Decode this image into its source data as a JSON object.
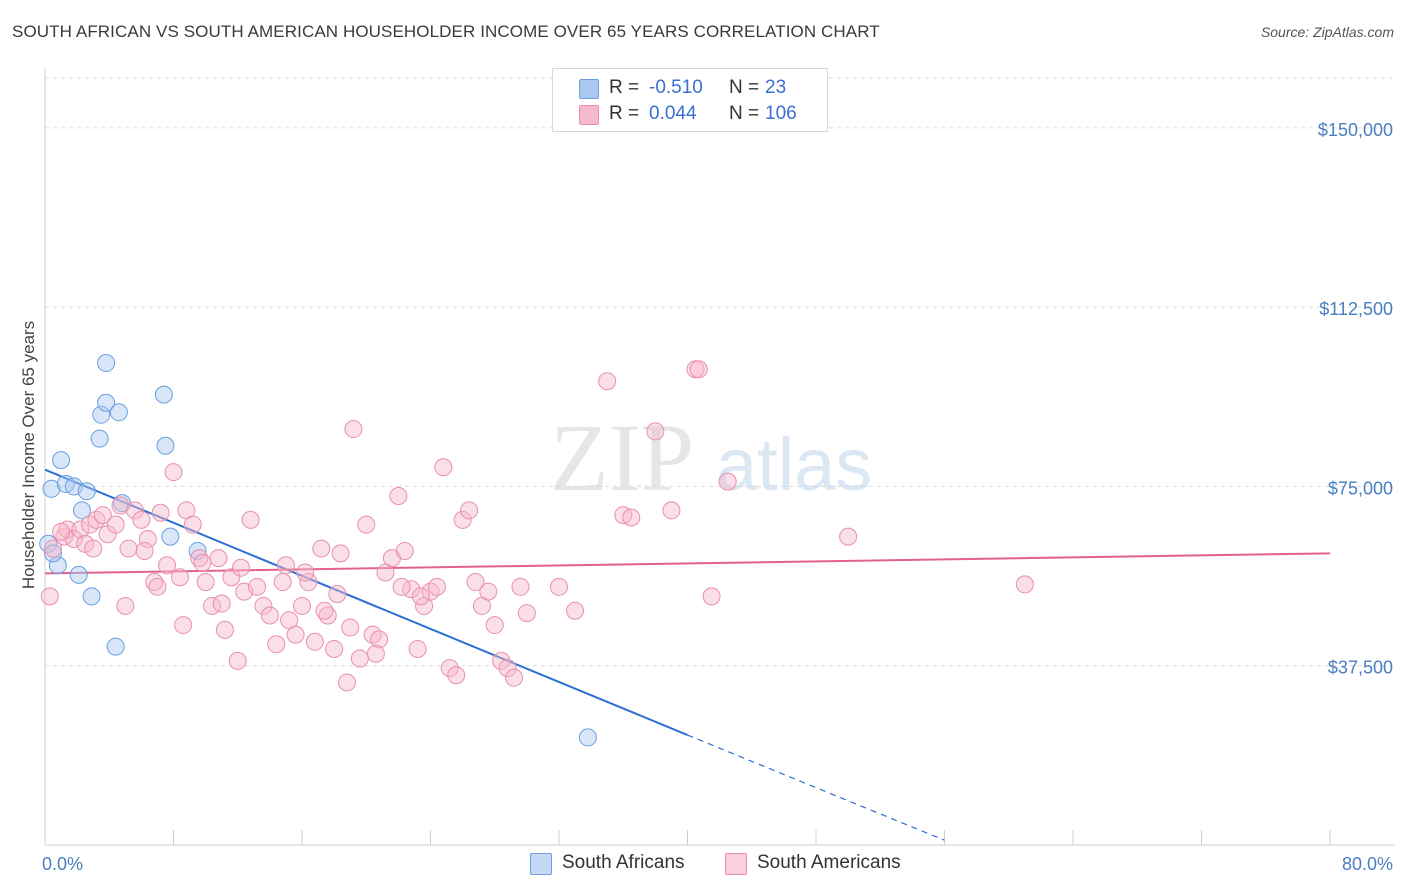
{
  "title": "SOUTH AFRICAN VS SOUTH AMERICAN HOUSEHOLDER INCOME OVER 65 YEARS CORRELATION CHART",
  "source": "Source: ZipAtlas.com",
  "watermark": {
    "zip": "ZIP",
    "atlas": "atlas"
  },
  "legend": {
    "rows": [
      {
        "r_label": "R =",
        "r_value": "-0.510",
        "n_label": "N =",
        "n_value": "23",
        "color": "#a8c8f0"
      },
      {
        "r_label": "R =",
        "r_value": "0.044",
        "n_label": "N =",
        "n_value": "106",
        "color": "#f6b8cb"
      }
    ]
  },
  "bottom_legend": [
    {
      "label": "South Africans",
      "color": "#a8c8f0"
    },
    {
      "label": "South Americans",
      "color": "#f6b8cb"
    }
  ],
  "chart_data": {
    "type": "scatter",
    "xlabel": "",
    "ylabel": "Householder Income Over 65 years",
    "xlim": [
      0,
      80
    ],
    "ylim": [
      0,
      160000
    ],
    "x_tick_labels": [
      "0.0%",
      "80.0%"
    ],
    "y_ticks": [
      37500,
      75000,
      112500,
      150000
    ],
    "y_tick_labels": [
      "$37,500",
      "$75,000",
      "$112,500",
      "$150,000"
    ],
    "grid": "horizontal dashed",
    "series": [
      {
        "name": "South Africans",
        "color": "#a8c8f0",
        "stroke": "#6a9fe0",
        "trend_color": "#2d6fd4",
        "points": [
          [
            0.2,
            63000
          ],
          [
            0.4,
            74500
          ],
          [
            1.0,
            80500
          ],
          [
            1.3,
            75500
          ],
          [
            1.8,
            75000
          ],
          [
            2.6,
            74000
          ],
          [
            2.3,
            70000
          ],
          [
            3.5,
            90000
          ],
          [
            3.4,
            85000
          ],
          [
            3.8,
            92500
          ],
          [
            4.6,
            90500
          ],
          [
            3.8,
            100800
          ],
          [
            7.4,
            94200
          ],
          [
            7.5,
            83500
          ],
          [
            4.8,
            71500
          ],
          [
            7.8,
            64500
          ],
          [
            9.5,
            61500
          ],
          [
            0.8,
            58500
          ],
          [
            2.1,
            56500
          ],
          [
            2.9,
            52000
          ],
          [
            4.4,
            41500
          ],
          [
            33.8,
            22500
          ],
          [
            0.5,
            61000
          ]
        ],
        "trend": {
          "x0": 0,
          "y0": 78500,
          "x1": 40,
          "y1": 23000,
          "dash_x1": 56,
          "dash_y1": 1000
        }
      },
      {
        "name": "South Americans",
        "color": "#f6b8cb",
        "stroke": "#e890aa",
        "trend_color": "#e2638a",
        "points": [
          [
            0.3,
            52000
          ],
          [
            0.5,
            62000
          ],
          [
            1.2,
            64500
          ],
          [
            1.4,
            66000
          ],
          [
            1.8,
            64000
          ],
          [
            2.2,
            66000
          ],
          [
            2.8,
            67000
          ],
          [
            3.2,
            68000
          ],
          [
            3.6,
            69000
          ],
          [
            3.9,
            65000
          ],
          [
            4.4,
            67000
          ],
          [
            4.7,
            71000
          ],
          [
            5.2,
            62000
          ],
          [
            5.6,
            70000
          ],
          [
            6.0,
            68000
          ],
          [
            6.4,
            64000
          ],
          [
            6.8,
            55000
          ],
          [
            7.2,
            69500
          ],
          [
            7.6,
            58500
          ],
          [
            8.0,
            78000
          ],
          [
            8.4,
            56000
          ],
          [
            8.8,
            70000
          ],
          [
            9.2,
            67000
          ],
          [
            9.6,
            60000
          ],
          [
            10.0,
            55000
          ],
          [
            10.4,
            50000
          ],
          [
            10.8,
            60000
          ],
          [
            11.2,
            45000
          ],
          [
            11.6,
            56000
          ],
          [
            12.0,
            38500
          ],
          [
            12.4,
            53000
          ],
          [
            12.8,
            68000
          ],
          [
            13.2,
            54000
          ],
          [
            13.6,
            50000
          ],
          [
            14.0,
            48000
          ],
          [
            14.4,
            42000
          ],
          [
            14.8,
            55000
          ],
          [
            15.2,
            47000
          ],
          [
            15.6,
            44000
          ],
          [
            16.0,
            50000
          ],
          [
            16.4,
            55000
          ],
          [
            16.8,
            42500
          ],
          [
            17.2,
            62000
          ],
          [
            17.6,
            48000
          ],
          [
            18.0,
            41000
          ],
          [
            18.4,
            61000
          ],
          [
            18.8,
            34000
          ],
          [
            19.2,
            87000
          ],
          [
            19.6,
            39000
          ],
          [
            20.0,
            67000
          ],
          [
            20.4,
            44000
          ],
          [
            20.8,
            43000
          ],
          [
            21.2,
            57000
          ],
          [
            21.6,
            60000
          ],
          [
            22.0,
            73000
          ],
          [
            22.4,
            61500
          ],
          [
            22.8,
            53500
          ],
          [
            23.2,
            41000
          ],
          [
            23.6,
            50000
          ],
          [
            24.0,
            53000
          ],
          [
            24.4,
            54000
          ],
          [
            24.8,
            79000
          ],
          [
            25.2,
            37000
          ],
          [
            25.6,
            35500
          ],
          [
            26.0,
            68000
          ],
          [
            26.4,
            70000
          ],
          [
            26.8,
            55000
          ],
          [
            27.2,
            50000
          ],
          [
            27.6,
            53000
          ],
          [
            28.0,
            46000
          ],
          [
            28.4,
            38500
          ],
          [
            28.8,
            37000
          ],
          [
            29.2,
            35000
          ],
          [
            29.6,
            54000
          ],
          [
            30.0,
            48500
          ],
          [
            32.0,
            54000
          ],
          [
            33.0,
            49000
          ],
          [
            35.0,
            97000
          ],
          [
            36.0,
            69000
          ],
          [
            36.5,
            68500
          ],
          [
            38.0,
            86500
          ],
          [
            39.0,
            70000
          ],
          [
            40.5,
            99500
          ],
          [
            40.7,
            99500
          ],
          [
            41.5,
            52000
          ],
          [
            42.5,
            76000
          ],
          [
            50.0,
            64500
          ],
          [
            61.0,
            54500
          ],
          [
            1.0,
            65500
          ],
          [
            2.5,
            63000
          ],
          [
            3.0,
            62000
          ],
          [
            5.0,
            50000
          ],
          [
            6.2,
            61500
          ],
          [
            7.0,
            54000
          ],
          [
            8.6,
            46000
          ],
          [
            9.8,
            59000
          ],
          [
            11.0,
            50500
          ],
          [
            12.2,
            58000
          ],
          [
            15.0,
            58500
          ],
          [
            16.2,
            57000
          ],
          [
            17.4,
            49000
          ],
          [
            18.2,
            52500
          ],
          [
            19.0,
            45500
          ],
          [
            20.6,
            40000
          ],
          [
            22.2,
            54000
          ],
          [
            23.4,
            52000
          ]
        ],
        "trend": {
          "x0": 0,
          "y0": 56800,
          "x1": 80,
          "y1": 61000
        }
      }
    ]
  }
}
